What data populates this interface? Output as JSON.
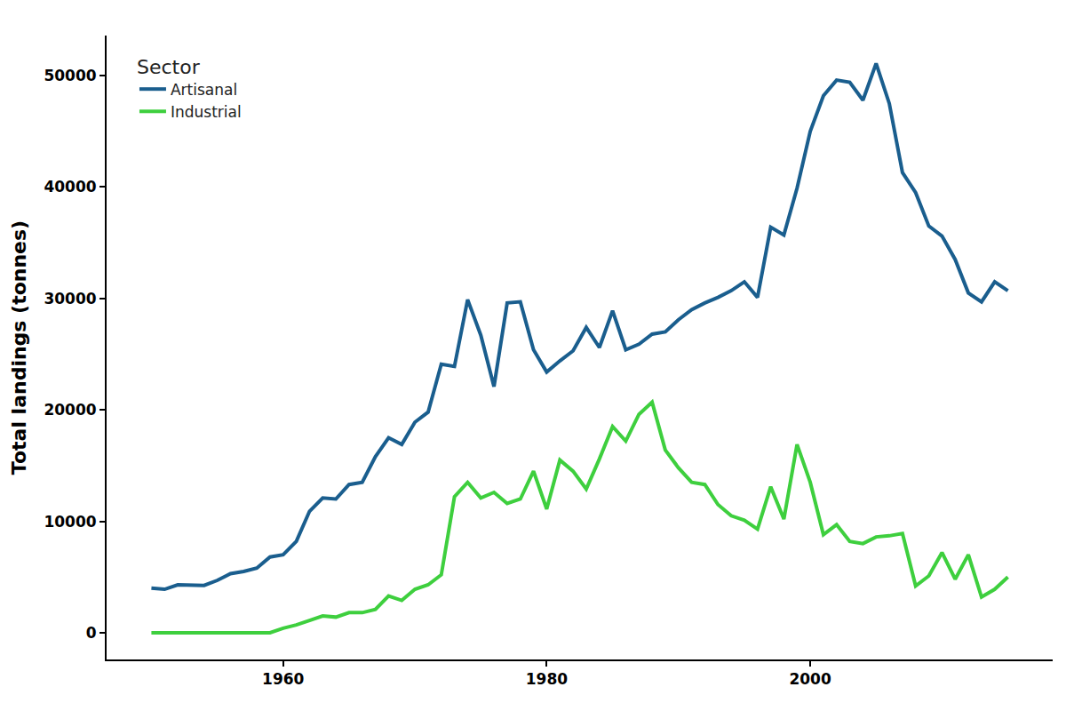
{
  "chart_data": {
    "type": "line",
    "y_label": "Total landings (tonnes)",
    "legend_title": "Sector",
    "legend": "upper left",
    "grid": false,
    "x": [
      1950,
      1951,
      1952,
      1953,
      1954,
      1955,
      1956,
      1957,
      1958,
      1959,
      1960,
      1961,
      1962,
      1963,
      1964,
      1965,
      1966,
      1967,
      1968,
      1969,
      1970,
      1971,
      1972,
      1973,
      1974,
      1975,
      1976,
      1977,
      1978,
      1979,
      1980,
      1981,
      1982,
      1983,
      1984,
      1985,
      1986,
      1987,
      1988,
      1989,
      1990,
      1991,
      1992,
      1993,
      1994,
      1995,
      1996,
      1997,
      1998,
      1999,
      2000,
      2001,
      2002,
      2003,
      2004,
      2005,
      2006,
      2007,
      2008,
      2009,
      2010,
      2011,
      2012,
      2013,
      2014,
      2015
    ],
    "xlim": [
      1946.6,
      2018.4
    ],
    "xticks": [
      1960,
      1980,
      2000
    ],
    "ylim": [
      -2400,
      53600
    ],
    "yticks": [
      0,
      10000,
      20000,
      30000,
      40000,
      50000
    ],
    "series": [
      {
        "name": "Artisanal",
        "color": "#1a5e8e",
        "values": [
          4000,
          3900,
          4300,
          4300,
          4250,
          4700,
          5300,
          5500,
          5800,
          6800,
          7000,
          8200,
          10900,
          12100,
          12000,
          13300,
          13500,
          15800,
          17500,
          16900,
          18900,
          19800,
          24100,
          23900,
          29900,
          26700,
          22100,
          29600,
          29700,
          25400,
          23400,
          24400,
          25300,
          27400,
          25600,
          28900,
          25400,
          25900,
          26800,
          27000,
          28100,
          29000,
          29600,
          30100,
          30700,
          31500,
          30100,
          36400,
          35700,
          39900,
          45000,
          48200,
          49600,
          49400,
          47800,
          51100,
          47500,
          41300,
          39500,
          36500,
          35600,
          33500,
          30500,
          29700,
          31500,
          30700
        ]
      },
      {
        "name": "Industrial",
        "color": "#3ecf3e",
        "values": [
          0,
          0,
          0,
          0,
          0,
          0,
          0,
          0,
          0,
          0,
          400,
          700,
          1100,
          1500,
          1400,
          1800,
          1800,
          2100,
          3300,
          2900,
          3900,
          4300,
          5200,
          12200,
          13500,
          12100,
          12600,
          11600,
          12000,
          14500,
          11100,
          15500,
          14500,
          12900,
          15600,
          18500,
          17200,
          19600,
          20700,
          16400,
          14800,
          13500,
          13300,
          11500,
          10500,
          10100,
          9300,
          13100,
          10200,
          16900,
          13500,
          8800,
          9700,
          8200,
          8000,
          8600,
          8700,
          8900,
          4200,
          5100,
          7200,
          4800,
          7000,
          3200,
          3900,
          5000
        ]
      }
    ]
  }
}
